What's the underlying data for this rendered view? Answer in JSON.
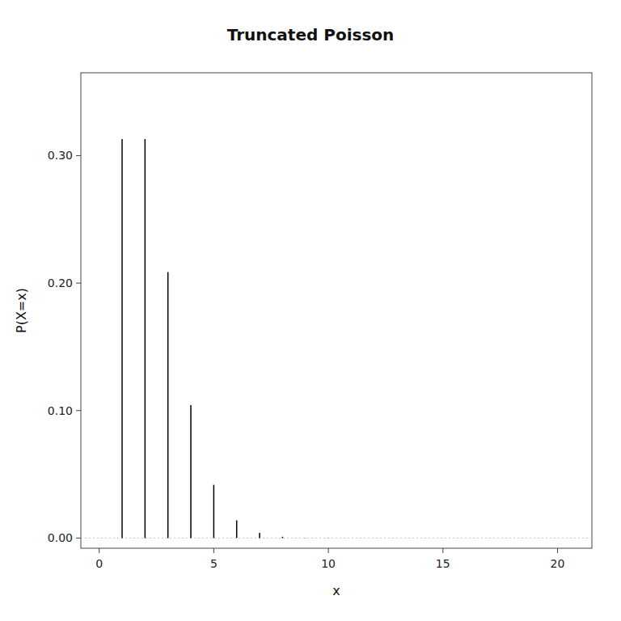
{
  "chart_data": {
    "type": "stem",
    "title": "Truncated Poisson",
    "x_label": "x",
    "y_label": "P(X=x)",
    "x": [
      1,
      2,
      3,
      4,
      5,
      6,
      7,
      8,
      9,
      10,
      11,
      12,
      13,
      14,
      15,
      16,
      17,
      18,
      19,
      20
    ],
    "values": [
      0.3130352855,
      0.3130352855,
      0.2086901903,
      0.1043450952,
      0.04173803807,
      0.01391267936,
      0.003975051244,
      0.0009937628111,
      0.0002208361802,
      4.416723605e-05,
      8.030406554e-06,
      1.338401092e-06,
      2.059078604e-07,
      2.941540862e-08,
      3.922054483e-09,
      4.902568104e-10,
      5.767727181e-11,
      6.408585757e-12,
      6.745879744e-13,
      6.745879744e-14
    ],
    "color": "#000000",
    "xlim": [
      -0.8,
      21.5
    ],
    "ylim": [
      -0.008,
      0.365
    ],
    "xticks": [
      0,
      5,
      10,
      15,
      20
    ],
    "yticks": [
      {
        "value": 0,
        "label": "0.00"
      },
      {
        "value": 0.1,
        "label": "0.10"
      },
      {
        "value": 0.2,
        "label": "0.20"
      },
      {
        "value": 0.3,
        "label": "0.30"
      }
    ],
    "grid": false
  }
}
